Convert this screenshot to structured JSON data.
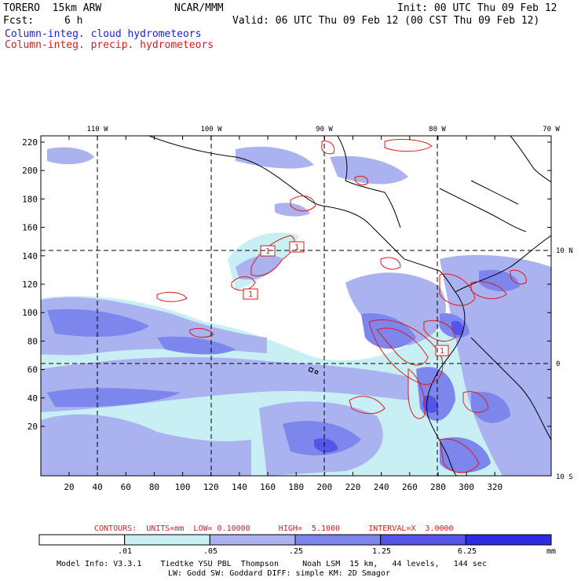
{
  "header": {
    "model": "TORERO  15km ARW",
    "org": "NCAR/MMM",
    "init": "Init: 00 UTC Thu 09 Feb 12",
    "fcst_label": "Fcst:",
    "fcst_value": "6 h",
    "valid": "Valid: 06 UTC Thu 09 Feb 12 (00 CST Thu 09 Feb 12)",
    "field_cloud": "Column-integ. cloud hydrometeors",
    "field_precip": "Column-integ. precip. hydrometeors"
  },
  "map": {
    "lon_labels": [
      "110 W",
      "100 W",
      "90 W",
      "80 W",
      "70 W"
    ],
    "lat_labels": [
      "10 N",
      "0",
      "10 S"
    ],
    "y_ticks": [
      "220",
      "200",
      "180",
      "160",
      "140",
      "120",
      "100",
      "80",
      "60",
      "40",
      "20"
    ],
    "x_ticks": [
      "20",
      "40",
      "60",
      "80",
      "100",
      "120",
      "140",
      "160",
      "180",
      "200",
      "220",
      "240",
      "260",
      "280",
      "300",
      "320"
    ],
    "contour_labels": [
      "1",
      "1",
      "1",
      "1"
    ],
    "colors": {
      "fill_light": "#c8f0f4",
      "fill_1": "#aab2f0",
      "fill_2": "#7c86ec",
      "fill_3": "#5454e8",
      "fill_4": "#2c2ce4",
      "contour": "#e01818",
      "coast": "#000000"
    }
  },
  "contour_info": {
    "text": "CONTOURS:  UNITS=mm  LOW= 0.10000      HIGH=  5.1000      INTERVAL=X  3.0000"
  },
  "colorbar": {
    "labels": [
      ".01",
      ".05",
      ".25",
      "1.25",
      "6.25"
    ],
    "unit": "mm",
    "colors": [
      "#ffffff",
      "#c8f0f4",
      "#aab2f0",
      "#7c86ec",
      "#5454e8",
      "#2c2ce4"
    ]
  },
  "footer": {
    "line1": "Model Info: V3.3.1    Tiedtke YSU PBL  Thompson     Noah LSM  15 km,   44 levels,   144 sec",
    "line2": "LW: Godd SW: Goddard DIFF: simple KM: 2D Smagor"
  }
}
